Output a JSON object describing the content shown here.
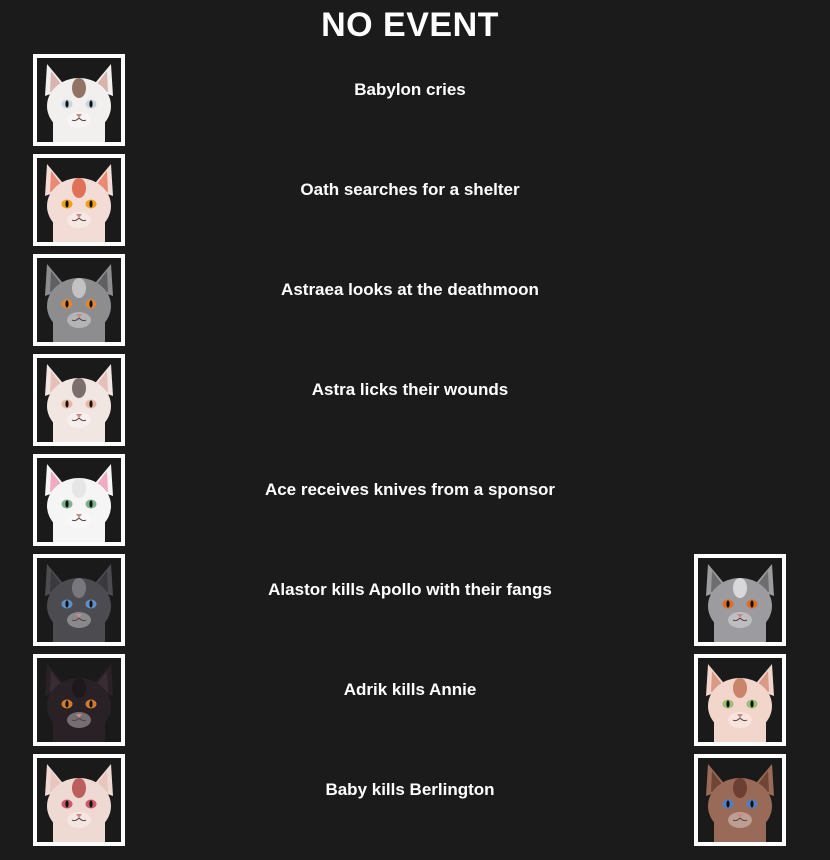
{
  "title": "NO EVENT",
  "events": [
    {
      "text": "Babylon cries",
      "left": {
        "fur": "#f2f0ef",
        "ear": "#d9b4ad",
        "eye": "#c7d6df",
        "mark": "#6b3e2a",
        "bg": "#1a1a1a"
      }
    },
    {
      "text": "Oath searches for a shelter",
      "left": {
        "fur": "#f3dcd6",
        "ear": "#e98a74",
        "eye": "#f2a21a",
        "mark": "#d9431f",
        "bg": "#1a1a1a"
      }
    },
    {
      "text": "Astraea looks at the deathmoon",
      "left": {
        "fur": "#8d8d8f",
        "ear": "#5f5f62",
        "eye": "#e7842e",
        "mark": "#d8d8d8",
        "bg": "#1a1a1a"
      }
    },
    {
      "text": "Astra licks their wounds",
      "left": {
        "fur": "#f2e6e3",
        "ear": "#e6c0b8",
        "eye": "#e8b8a2",
        "mark": "#4a3a3a",
        "bg": "#1a1a1a"
      }
    },
    {
      "text": "Ace receives knives from a sponsor",
      "left": {
        "fur": "#f5f5f5",
        "ear": "#f0aac3",
        "eye": "#7db38a",
        "mark": "#e0e0e0",
        "bg": "#1a1a1a"
      }
    },
    {
      "text": "Alastor kills Apollo with their fangs",
      "left": {
        "fur": "#4b4b50",
        "ear": "#3a3a3e",
        "eye": "#5f8fc8",
        "mark": "#8a8a90",
        "bg": "#1a1a1a"
      },
      "right": {
        "fur": "#9c9ca0",
        "ear": "#6d6d70",
        "eye": "#e26c1f",
        "mark": "#f2f2f2",
        "bg": "#1a1a1a"
      }
    },
    {
      "text": "Adrik kills Annie",
      "left": {
        "fur": "#2a2126",
        "ear": "#3a2c33",
        "eye": "#d47a2a",
        "mark": "#1a1418",
        "bg": "#1a1a1a"
      },
      "right": {
        "fur": "#f2d6cb",
        "ear": "#d99a86",
        "eye": "#9cbf78",
        "mark": "#b76240",
        "bg": "#1a1a1a"
      }
    },
    {
      "text": "Baby kills Berlington",
      "left": {
        "fur": "#efd9d3",
        "ear": "#e8c5bd",
        "eye": "#c85a6a",
        "mark": "#a7282c",
        "bg": "#1a1a1a"
      },
      "right": {
        "fur": "#9a6a58",
        "ear": "#6f4536",
        "eye": "#4f7fc6",
        "mark": "#5a2e22",
        "bg": "#1a1a1a"
      }
    }
  ]
}
